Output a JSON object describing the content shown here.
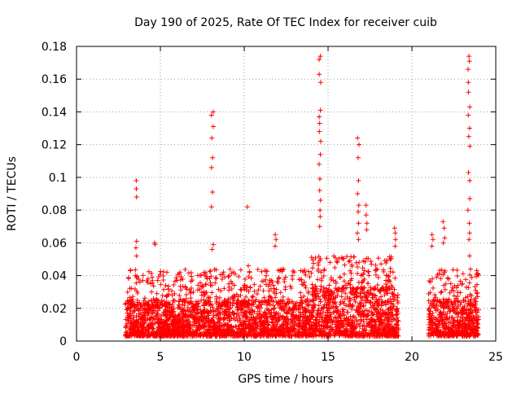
{
  "chart_data": {
    "type": "scatter",
    "title": "Day 190 of 2025, Rate Of TEC Index for receiver cuib",
    "xlabel": "GPS time / hours",
    "ylabel": "ROTI / TECUs",
    "xlim": [
      0,
      25
    ],
    "ylim": [
      0,
      0.18
    ],
    "x_ticks": [
      0,
      5,
      10,
      15,
      20,
      25
    ],
    "x_tick_labels": [
      "0",
      "5",
      "10",
      "15",
      "20",
      "25"
    ],
    "y_ticks": [
      0,
      0.02,
      0.04,
      0.06,
      0.08,
      0.1,
      0.12,
      0.14,
      0.16,
      0.18
    ],
    "y_tick_labels": [
      "0",
      "0.02",
      "0.04",
      "0.06",
      "0.08",
      "0.1",
      "0.12",
      "0.14",
      "0.16",
      "0.18"
    ],
    "grid": true,
    "marker": "+",
    "color": "#ff0000",
    "segments": [
      {
        "x_start": 2.9,
        "x_end": 14.0,
        "bulk_max": 0.022
      },
      {
        "x_start": 14.0,
        "x_end": 19.2,
        "bulk_max": 0.03
      },
      {
        "x_start": 21.0,
        "x_end": 24.0,
        "bulk_max": 0.022
      }
    ],
    "peaks": [
      {
        "x": 3.6,
        "values": [
          0.098,
          0.093,
          0.088,
          0.061,
          0.057,
          0.052
        ]
      },
      {
        "x": 4.7,
        "values": [
          0.06,
          0.059
        ]
      },
      {
        "x": 8.1,
        "values": [
          0.14,
          0.138,
          0.131,
          0.124,
          0.112,
          0.106,
          0.091,
          0.082,
          0.059,
          0.056
        ]
      },
      {
        "x": 10.2,
        "values": [
          0.082,
          0.046
        ]
      },
      {
        "x": 11.9,
        "values": [
          0.065,
          0.062,
          0.058
        ]
      },
      {
        "x": 14.5,
        "values": [
          0.174,
          0.172,
          0.163,
          0.158,
          0.141,
          0.137,
          0.133,
          0.128,
          0.122,
          0.114,
          0.108,
          0.099,
          0.092,
          0.086,
          0.08,
          0.076,
          0.07
        ]
      },
      {
        "x": 16.8,
        "values": [
          0.124,
          0.12,
          0.112,
          0.098,
          0.09,
          0.083,
          0.079,
          0.072,
          0.066,
          0.062
        ]
      },
      {
        "x": 17.3,
        "values": [
          0.083,
          0.077,
          0.072,
          0.068
        ]
      },
      {
        "x": 19.0,
        "values": [
          0.069,
          0.066,
          0.062,
          0.058
        ]
      },
      {
        "x": 21.2,
        "values": [
          0.065,
          0.062,
          0.058
        ]
      },
      {
        "x": 21.9,
        "values": [
          0.073,
          0.069,
          0.063,
          0.06
        ]
      },
      {
        "x": 23.4,
        "values": [
          0.174,
          0.171,
          0.166,
          0.158,
          0.152,
          0.143,
          0.138,
          0.13,
          0.125,
          0.119,
          0.103,
          0.098,
          0.087,
          0.08,
          0.072,
          0.066,
          0.062,
          0.052
        ]
      }
    ]
  }
}
